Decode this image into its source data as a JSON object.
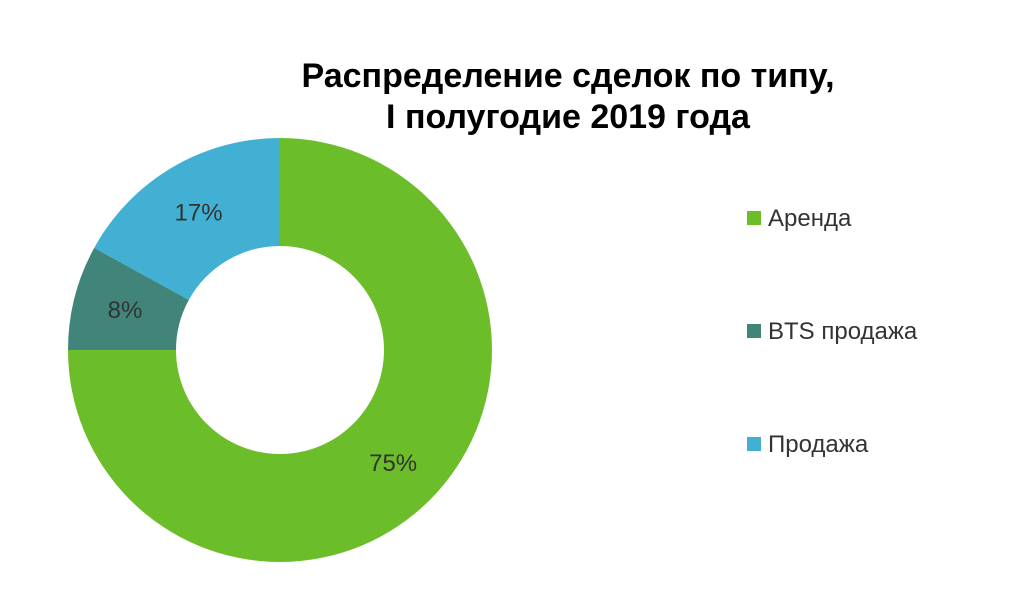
{
  "chart_data": {
    "type": "pie",
    "title_lines": [
      "Распределение сделок по типу,",
      "I полугодие 2019 года"
    ],
    "categories": [
      "Аренда",
      "BTS продажа",
      "Продажа"
    ],
    "values": [
      75,
      8,
      17
    ],
    "data_labels": [
      "75%",
      "8%",
      "17%"
    ],
    "colors": [
      "#6cbd2a",
      "#41847a",
      "#42b0d2"
    ],
    "legend_position": "right",
    "donut": true
  }
}
